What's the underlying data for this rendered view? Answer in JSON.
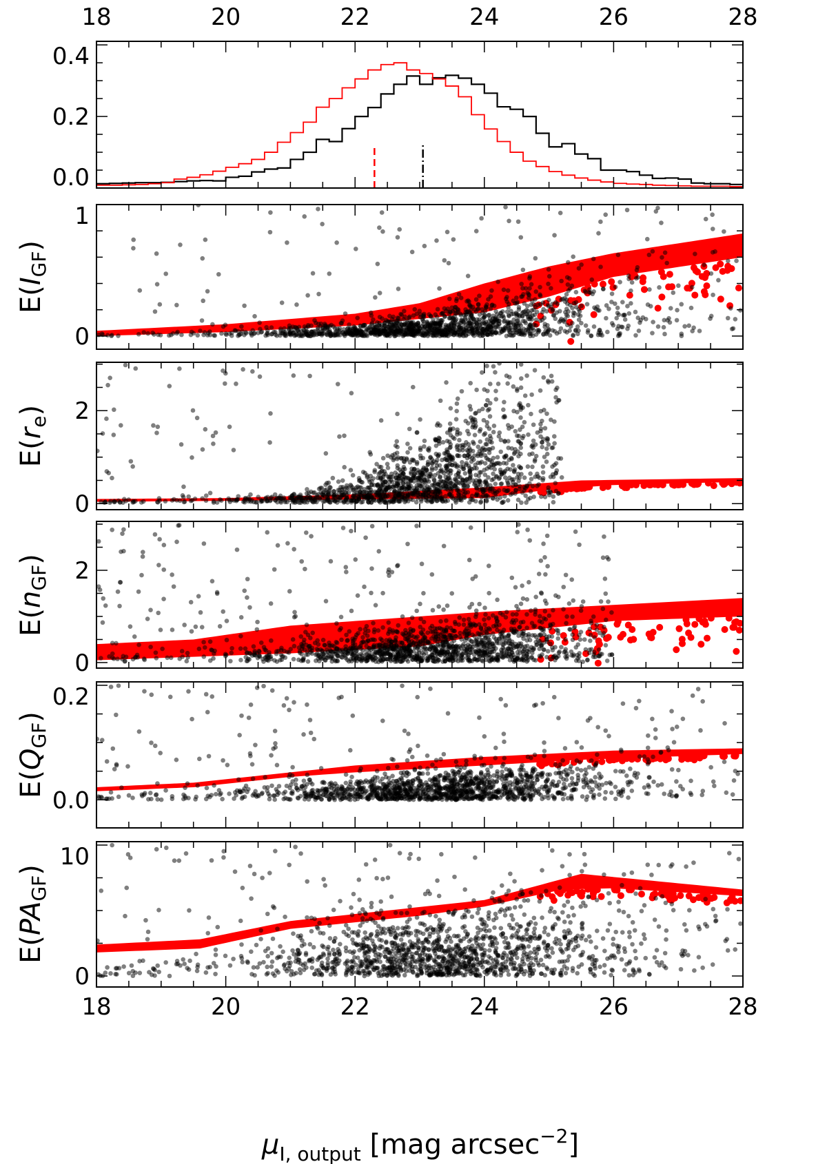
{
  "chart_data": [
    {
      "type": "histogram",
      "title": "",
      "xlim": [
        18,
        28
      ],
      "ylim": [
        0,
        0.41
      ],
      "x_ticks": [
        18,
        20,
        22,
        24,
        26,
        28
      ],
      "x_tick_labels_top": [
        "18",
        "20",
        "22",
        "24",
        "26",
        "28"
      ],
      "y_ticks": [
        0.0,
        0.2,
        0.4
      ],
      "y_tick_labels": [
        "0.0",
        "0.2",
        "0.4"
      ],
      "bin_start": 18,
      "bin_width": 0.2,
      "series": [
        {
          "name": "output (black)",
          "color": "#000000",
          "values": [
            0.012,
            0.013,
            0.014,
            0.015,
            0.015,
            0.016,
            0.018,
            0.02,
            0.021,
            0.02,
            0.03,
            0.033,
            0.045,
            0.053,
            0.056,
            0.08,
            0.1,
            0.136,
            0.13,
            0.166,
            0.2,
            0.225,
            0.263,
            0.29,
            0.313,
            0.29,
            0.308,
            0.315,
            0.307,
            0.29,
            0.265,
            0.227,
            0.22,
            0.2,
            0.153,
            0.115,
            0.124,
            0.095,
            0.082,
            0.05,
            0.05,
            0.046,
            0.036,
            0.027,
            0.028,
            0.025,
            0.014,
            0.012,
            0.012,
            0.01
          ],
          "median_marker": 23.05,
          "marker_style": "dash-dot"
        },
        {
          "name": "model (red)",
          "color": "#ff0000",
          "values": [
            0.008,
            0.008,
            0.009,
            0.01,
            0.012,
            0.015,
            0.025,
            0.03,
            0.037,
            0.047,
            0.058,
            0.068,
            0.08,
            0.1,
            0.128,
            0.155,
            0.184,
            0.226,
            0.25,
            0.28,
            0.305,
            0.33,
            0.345,
            0.35,
            0.33,
            0.32,
            0.305,
            0.285,
            0.255,
            0.205,
            0.165,
            0.13,
            0.1,
            0.075,
            0.06,
            0.046,
            0.036,
            0.028,
            0.022,
            0.017,
            0.013,
            0.011,
            0.01,
            0.008,
            0.007,
            0.006,
            0.005,
            0.005,
            0.005,
            0.004
          ],
          "median_marker": 22.3,
          "marker_style": "dashed"
        }
      ],
      "marker_height": 0.12
    },
    {
      "type": "scatter",
      "ylabel": {
        "prefix": "E(",
        "var": "I",
        "sub": "GF",
        "suffix": ")"
      },
      "xlim": [
        18,
        28
      ],
      "ylim": [
        -0.1,
        1.0
      ],
      "y_ticks": [
        0,
        1
      ],
      "y_tick_labels": [
        "0",
        "1"
      ],
      "y_minor": 0.2,
      "red_band_upper": [
        [
          18,
          0.04
        ],
        [
          20,
          0.09
        ],
        [
          22,
          0.17
        ],
        [
          23,
          0.25
        ],
        [
          24,
          0.4
        ],
        [
          25,
          0.53
        ],
        [
          26,
          0.63
        ],
        [
          28,
          0.78
        ]
      ],
      "red_band_lower": [
        [
          18,
          0.0
        ],
        [
          20,
          0.03
        ],
        [
          22,
          0.08
        ],
        [
          24,
          0.18
        ],
        [
          25,
          0.3
        ],
        [
          26,
          0.45
        ],
        [
          28,
          0.6
        ]
      ],
      "red_tail_drop": 0.15,
      "black_cloud": {
        "n": 1500,
        "xmax": 28,
        "base": [
          [
            18,
            0.0
          ],
          [
            28,
            0.0
          ]
        ],
        "spread": [
          [
            18,
            0.01
          ],
          [
            22,
            0.05
          ],
          [
            24,
            0.12
          ],
          [
            25,
            0.2
          ],
          [
            26,
            0.3
          ],
          [
            28,
            0.35
          ]
        ],
        "outlier_fraction": 0.08,
        "outlier_max": 1.0
      }
    },
    {
      "type": "scatter",
      "ylabel": {
        "prefix": "E(",
        "var": "r",
        "sub": "e",
        "suffix": ")"
      },
      "xlim": [
        18,
        28
      ],
      "ylim": [
        -0.13,
        3.04
      ],
      "y_ticks": [
        0,
        2
      ],
      "y_tick_labels": [
        "0",
        "2"
      ],
      "y_minor": 0.5,
      "red_band_upper": [
        [
          18,
          0.1
        ],
        [
          20,
          0.12
        ],
        [
          22,
          0.2
        ],
        [
          24,
          0.35
        ],
        [
          25.5,
          0.5
        ],
        [
          28,
          0.55
        ]
      ],
      "red_band_lower": [
        [
          18,
          0.04
        ],
        [
          20,
          0.06
        ],
        [
          22,
          0.09
        ],
        [
          24,
          0.12
        ],
        [
          25,
          0.3
        ],
        [
          26,
          0.4
        ],
        [
          28,
          0.47
        ]
      ],
      "red_tail_drop": 0.03,
      "black_cloud": {
        "n": 1500,
        "xmax": 25.2,
        "base": [
          [
            18,
            0.02
          ],
          [
            28,
            0.02
          ]
        ],
        "spread": [
          [
            18,
            0.02
          ],
          [
            21,
            0.1
          ],
          [
            22,
            0.25
          ],
          [
            23,
            0.6
          ],
          [
            24,
            1.2
          ],
          [
            25,
            1.5
          ]
        ],
        "outlier_fraction": 0.06,
        "outlier_max": 3.0
      }
    },
    {
      "type": "scatter",
      "ylabel": {
        "prefix": "E(",
        "var": "n",
        "sub": "GF",
        "suffix": ")"
      },
      "xlim": [
        18,
        28
      ],
      "ylim": [
        -0.12,
        3.06
      ],
      "y_ticks": [
        0,
        2
      ],
      "y_tick_labels": [
        "0",
        "2"
      ],
      "y_minor": 0.5,
      "red_band_upper": [
        [
          18,
          0.4
        ],
        [
          19.5,
          0.5
        ],
        [
          21,
          0.8
        ],
        [
          24,
          1.1
        ],
        [
          28,
          1.4
        ]
      ],
      "red_band_lower": [
        [
          18,
          0.05
        ],
        [
          20,
          0.15
        ],
        [
          21,
          0.2
        ],
        [
          23,
          0.35
        ],
        [
          24,
          0.6
        ],
        [
          26,
          0.9
        ],
        [
          28,
          1.0
        ]
      ],
      "red_tail_drop": 0.4,
      "black_cloud": {
        "n": 1500,
        "xmax": 26,
        "base": [
          [
            18,
            0.02
          ],
          [
            28,
            0.02
          ]
        ],
        "spread": [
          [
            18,
            0.05
          ],
          [
            22,
            0.3
          ],
          [
            24,
            0.5
          ],
          [
            26,
            0.8
          ]
        ],
        "outlier_fraction": 0.12,
        "outlier_max": 3.0
      }
    },
    {
      "type": "scatter",
      "ylabel": {
        "prefix": "E(",
        "var": "Q",
        "sub": "GF",
        "suffix": ")"
      },
      "xlim": [
        18,
        28
      ],
      "ylim": [
        -0.049,
        0.206
      ],
      "y_ticks": [
        0.0,
        0.2
      ],
      "y_tick_labels": [
        "0.0",
        "0.2"
      ],
      "y_minor": 0.05,
      "red_band_upper": [
        [
          18,
          0.022
        ],
        [
          19.5,
          0.03
        ],
        [
          22,
          0.06
        ],
        [
          24,
          0.075
        ],
        [
          26,
          0.086
        ],
        [
          28,
          0.09
        ]
      ],
      "red_band_lower": [
        [
          18,
          0.015
        ],
        [
          19.5,
          0.022
        ],
        [
          21,
          0.04
        ],
        [
          22,
          0.048
        ],
        [
          24,
          0.06
        ],
        [
          25.5,
          0.07
        ],
        [
          28,
          0.08
        ]
      ],
      "red_tail_drop": 0.004,
      "black_cloud": {
        "n": 1500,
        "xmax": 28,
        "base": [
          [
            18,
            0.0
          ],
          [
            28,
            0.0
          ]
        ],
        "spread": [
          [
            18,
            0.005
          ],
          [
            22,
            0.02
          ],
          [
            24,
            0.03
          ],
          [
            26,
            0.04
          ]
        ],
        "outlier_fraction": 0.1,
        "outlier_max": 0.2
      }
    },
    {
      "type": "scatter",
      "ylabel": {
        "prefix": "E(",
        "var": "PA",
        "sub": "GF",
        "suffix": ")"
      },
      "xlim": [
        18,
        28
      ],
      "ylim": [
        -0.84,
        10.26
      ],
      "y_ticks": [
        0,
        10
      ],
      "y_tick_labels": [
        "0",
        "10"
      ],
      "y_minor": 2.5,
      "x_ticks": [
        18,
        20,
        22,
        24,
        26,
        28
      ],
      "x_tick_labels": [
        "18",
        "20",
        "22",
        "24",
        "26",
        "28"
      ],
      "red_band_upper": [
        [
          18,
          2.4
        ],
        [
          19.6,
          2.8
        ],
        [
          21,
          4.2
        ],
        [
          24,
          5.8
        ],
        [
          25.5,
          7.8
        ],
        [
          28,
          6.6
        ]
      ],
      "red_band_lower": [
        [
          18,
          1.8
        ],
        [
          19.6,
          2.1
        ],
        [
          21,
          3.6
        ],
        [
          23,
          4.6
        ],
        [
          24,
          5.3
        ],
        [
          25.2,
          6.6
        ],
        [
          26,
          6.7
        ],
        [
          28,
          6.1
        ]
      ],
      "red_tail_drop": 0.4,
      "black_cloud": {
        "n": 1500,
        "xmax": 28,
        "base": [
          [
            18,
            0.0
          ],
          [
            28,
            0.0
          ]
        ],
        "spread": [
          [
            18,
            0.3
          ],
          [
            22,
            2.0
          ],
          [
            24,
            2.5
          ],
          [
            26,
            3.0
          ],
          [
            28,
            3.0
          ]
        ],
        "outlier_fraction": 0.12,
        "outlier_max": 10.0
      }
    }
  ],
  "xlabel": {
    "symbol": "μ",
    "sub": "I, output",
    "unit": " [mag arcsec",
    "sup": "−2",
    "close": "]"
  }
}
